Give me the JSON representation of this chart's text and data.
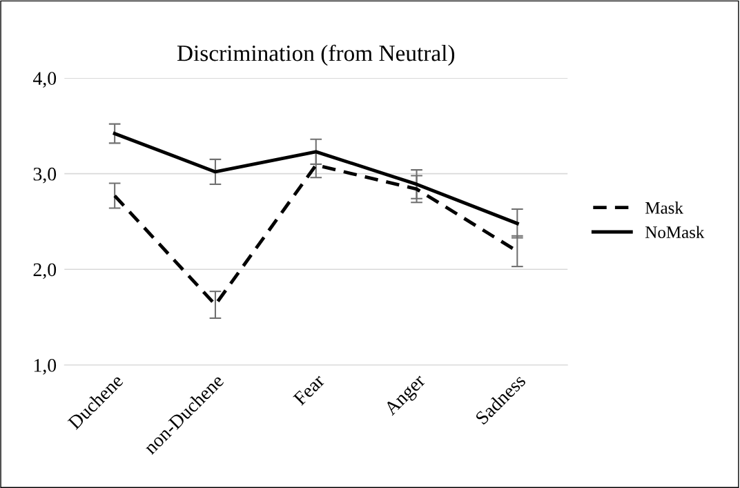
{
  "chart_data": {
    "type": "line",
    "title": "Discrimination (from Neutral)",
    "categories": [
      "Duchene",
      "non-Duchene",
      "Fear",
      "Anger",
      "Sadness"
    ],
    "series": [
      {
        "name": "Mask",
        "color": "#000000",
        "line_style": "dashed",
        "values": [
          2.77,
          1.63,
          3.09,
          2.84,
          2.19
        ],
        "errors": [
          0.13,
          0.14,
          0.13,
          0.14,
          0.16
        ]
      },
      {
        "name": "NoMask",
        "color": "#000000",
        "line_style": "solid",
        "values": [
          3.42,
          3.02,
          3.23,
          2.89,
          2.48
        ],
        "errors": [
          0.1,
          0.13,
          0.13,
          0.15,
          0.15
        ]
      }
    ],
    "ylim": [
      1,
      4
    ],
    "yticks": [
      {
        "value": 1,
        "label": "1,0"
      },
      {
        "value": 2,
        "label": "2,0"
      },
      {
        "value": 3,
        "label": "3,0"
      },
      {
        "value": 4,
        "label": "4,0"
      }
    ],
    "grid": "y",
    "legend": "right",
    "marker": "none"
  }
}
